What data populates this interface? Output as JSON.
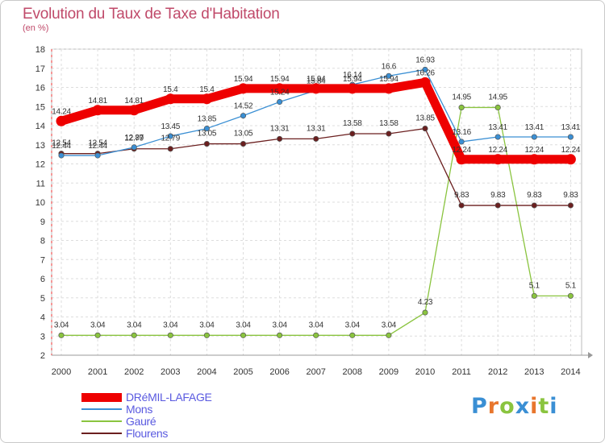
{
  "header": {
    "title": "Evolution du Taux de Taxe d'Habitation",
    "subtitle": "(en %)"
  },
  "logo": {
    "text": "Proxiti",
    "colors": [
      "#3a8fd4",
      "#e8762d",
      "#8ac43f",
      "#3a8fd4",
      "#e8762d",
      "#8ac43f",
      "#3a8fd4"
    ]
  },
  "chart_data": {
    "type": "line",
    "x": [
      2000,
      2001,
      2002,
      2003,
      2004,
      2005,
      2006,
      2007,
      2008,
      2009,
      2010,
      2011,
      2012,
      2013,
      2014
    ],
    "xlabel": "",
    "ylabel": "",
    "ylim": [
      2,
      18
    ],
    "yticks": [
      2,
      3,
      4,
      5,
      6,
      7,
      8,
      9,
      10,
      11,
      12,
      13,
      14,
      15,
      16,
      17,
      18
    ],
    "grid": "dashed",
    "legend_position": "bottom-left",
    "series": [
      {
        "name": "DRéMIL-LAFAGE",
        "color": "#ee0000",
        "emphasis": true,
        "values": [
          14.24,
          14.81,
          14.81,
          15.4,
          15.4,
          15.94,
          15.94,
          15.94,
          15.94,
          15.94,
          16.26,
          12.24,
          12.24,
          12.24,
          12.24
        ],
        "labels": [
          "14.24",
          "14.81",
          "14.81",
          "15.4",
          "15.4",
          "15.94",
          "15.94",
          "15.94",
          "15.94",
          "15.94",
          "16.26",
          "12.24",
          "12.24",
          "12.24",
          "12.24"
        ]
      },
      {
        "name": "Mons",
        "color": "#3a8fd4",
        "emphasis": false,
        "values": [
          12.44,
          12.44,
          12.87,
          13.45,
          13.85,
          14.52,
          15.24,
          15.84,
          16.14,
          16.6,
          16.93,
          13.16,
          13.41,
          13.41,
          13.41
        ],
        "labels": [
          "12.44",
          "12.44",
          "12.87",
          "13.45",
          "13.85",
          "14.52",
          "15.24",
          "15.84",
          "16.14",
          "16.6",
          "16.93",
          "13.16",
          "13.41",
          "13.41",
          "13.41"
        ]
      },
      {
        "name": "Gauré",
        "color": "#8ac43f",
        "emphasis": false,
        "values": [
          3.04,
          3.04,
          3.04,
          3.04,
          3.04,
          3.04,
          3.04,
          3.04,
          3.04,
          3.04,
          4.23,
          14.95,
          14.95,
          5.1,
          5.1
        ],
        "labels": [
          "3.04",
          "3.04",
          "3.04",
          "3.04",
          "3.04",
          "3.04",
          "3.04",
          "3.04",
          "3.04",
          "3.04",
          "4.23",
          "14.95",
          "14.95",
          "5.1",
          "5.1"
        ]
      },
      {
        "name": "Flourens",
        "color": "#6b1f1f",
        "emphasis": false,
        "values": [
          12.54,
          12.54,
          12.79,
          12.79,
          13.05,
          13.05,
          13.31,
          13.31,
          13.58,
          13.58,
          13.85,
          9.83,
          9.83,
          9.83,
          9.83
        ],
        "labels": [
          "12.54",
          "12.54",
          "12.79",
          "12.79",
          "13.05",
          "13.05",
          "13.31",
          "13.31",
          "13.58",
          "13.58",
          "13.85",
          "9.83",
          "9.83",
          "9.83",
          "9.83"
        ]
      }
    ]
  }
}
